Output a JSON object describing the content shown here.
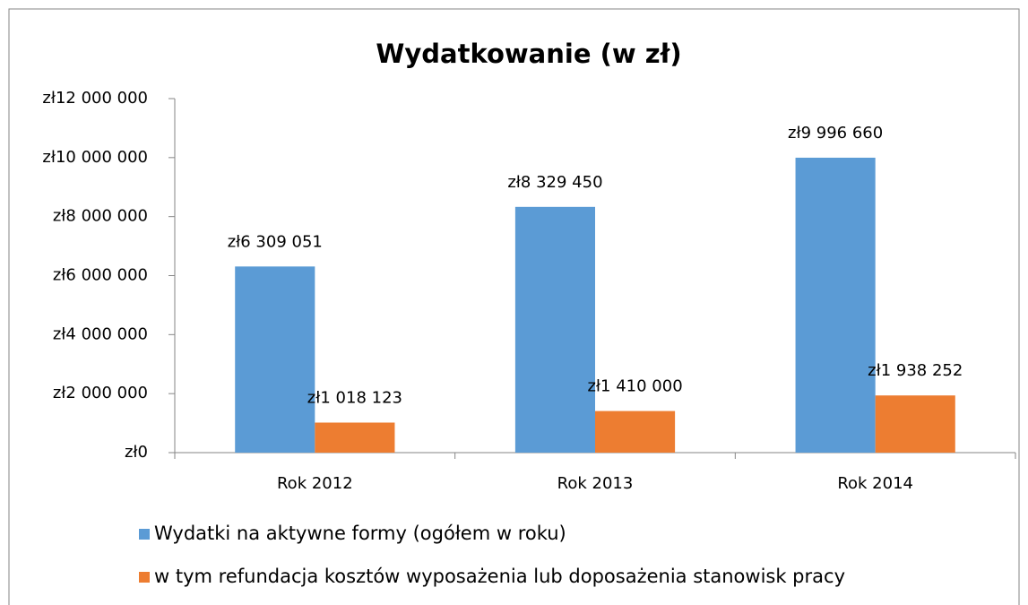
{
  "chart_data": {
    "type": "bar",
    "title": "Wydatkowanie (w zł)",
    "categories": [
      "Rok 2012",
      "Rok 2013",
      "Rok 2014"
    ],
    "series": [
      {
        "name": "Wydatki na aktywne formy (ogółem w roku)",
        "color": "#5b9bd5",
        "values": [
          6309051,
          8329450,
          9996660
        ],
        "value_labels": [
          "zł6 309 051",
          "zł8 329 450",
          "zł9 996 660"
        ]
      },
      {
        "name": "w tym refundacja kosztów wyposażenia lub doposażenia stanowisk pracy",
        "color": "#ed7d31",
        "values": [
          1018123,
          1410000,
          1938252
        ],
        "value_labels": [
          "zł1 018 123",
          "zł1 410 000",
          "zł1 938 252"
        ]
      }
    ],
    "ylim": [
      0,
      12000000
    ],
    "yticks": [
      {
        "value": 0,
        "label": "zł0"
      },
      {
        "value": 2000000,
        "label": "zł2 000 000"
      },
      {
        "value": 4000000,
        "label": "zł4 000 000"
      },
      {
        "value": 6000000,
        "label": "zł6 000 000"
      },
      {
        "value": 8000000,
        "label": "zł8 000 000"
      },
      {
        "value": 10000000,
        "label": "zł10 000 000"
      },
      {
        "value": 12000000,
        "label": "zł12 000 000"
      }
    ],
    "grid": false,
    "legend": "bottom"
  }
}
